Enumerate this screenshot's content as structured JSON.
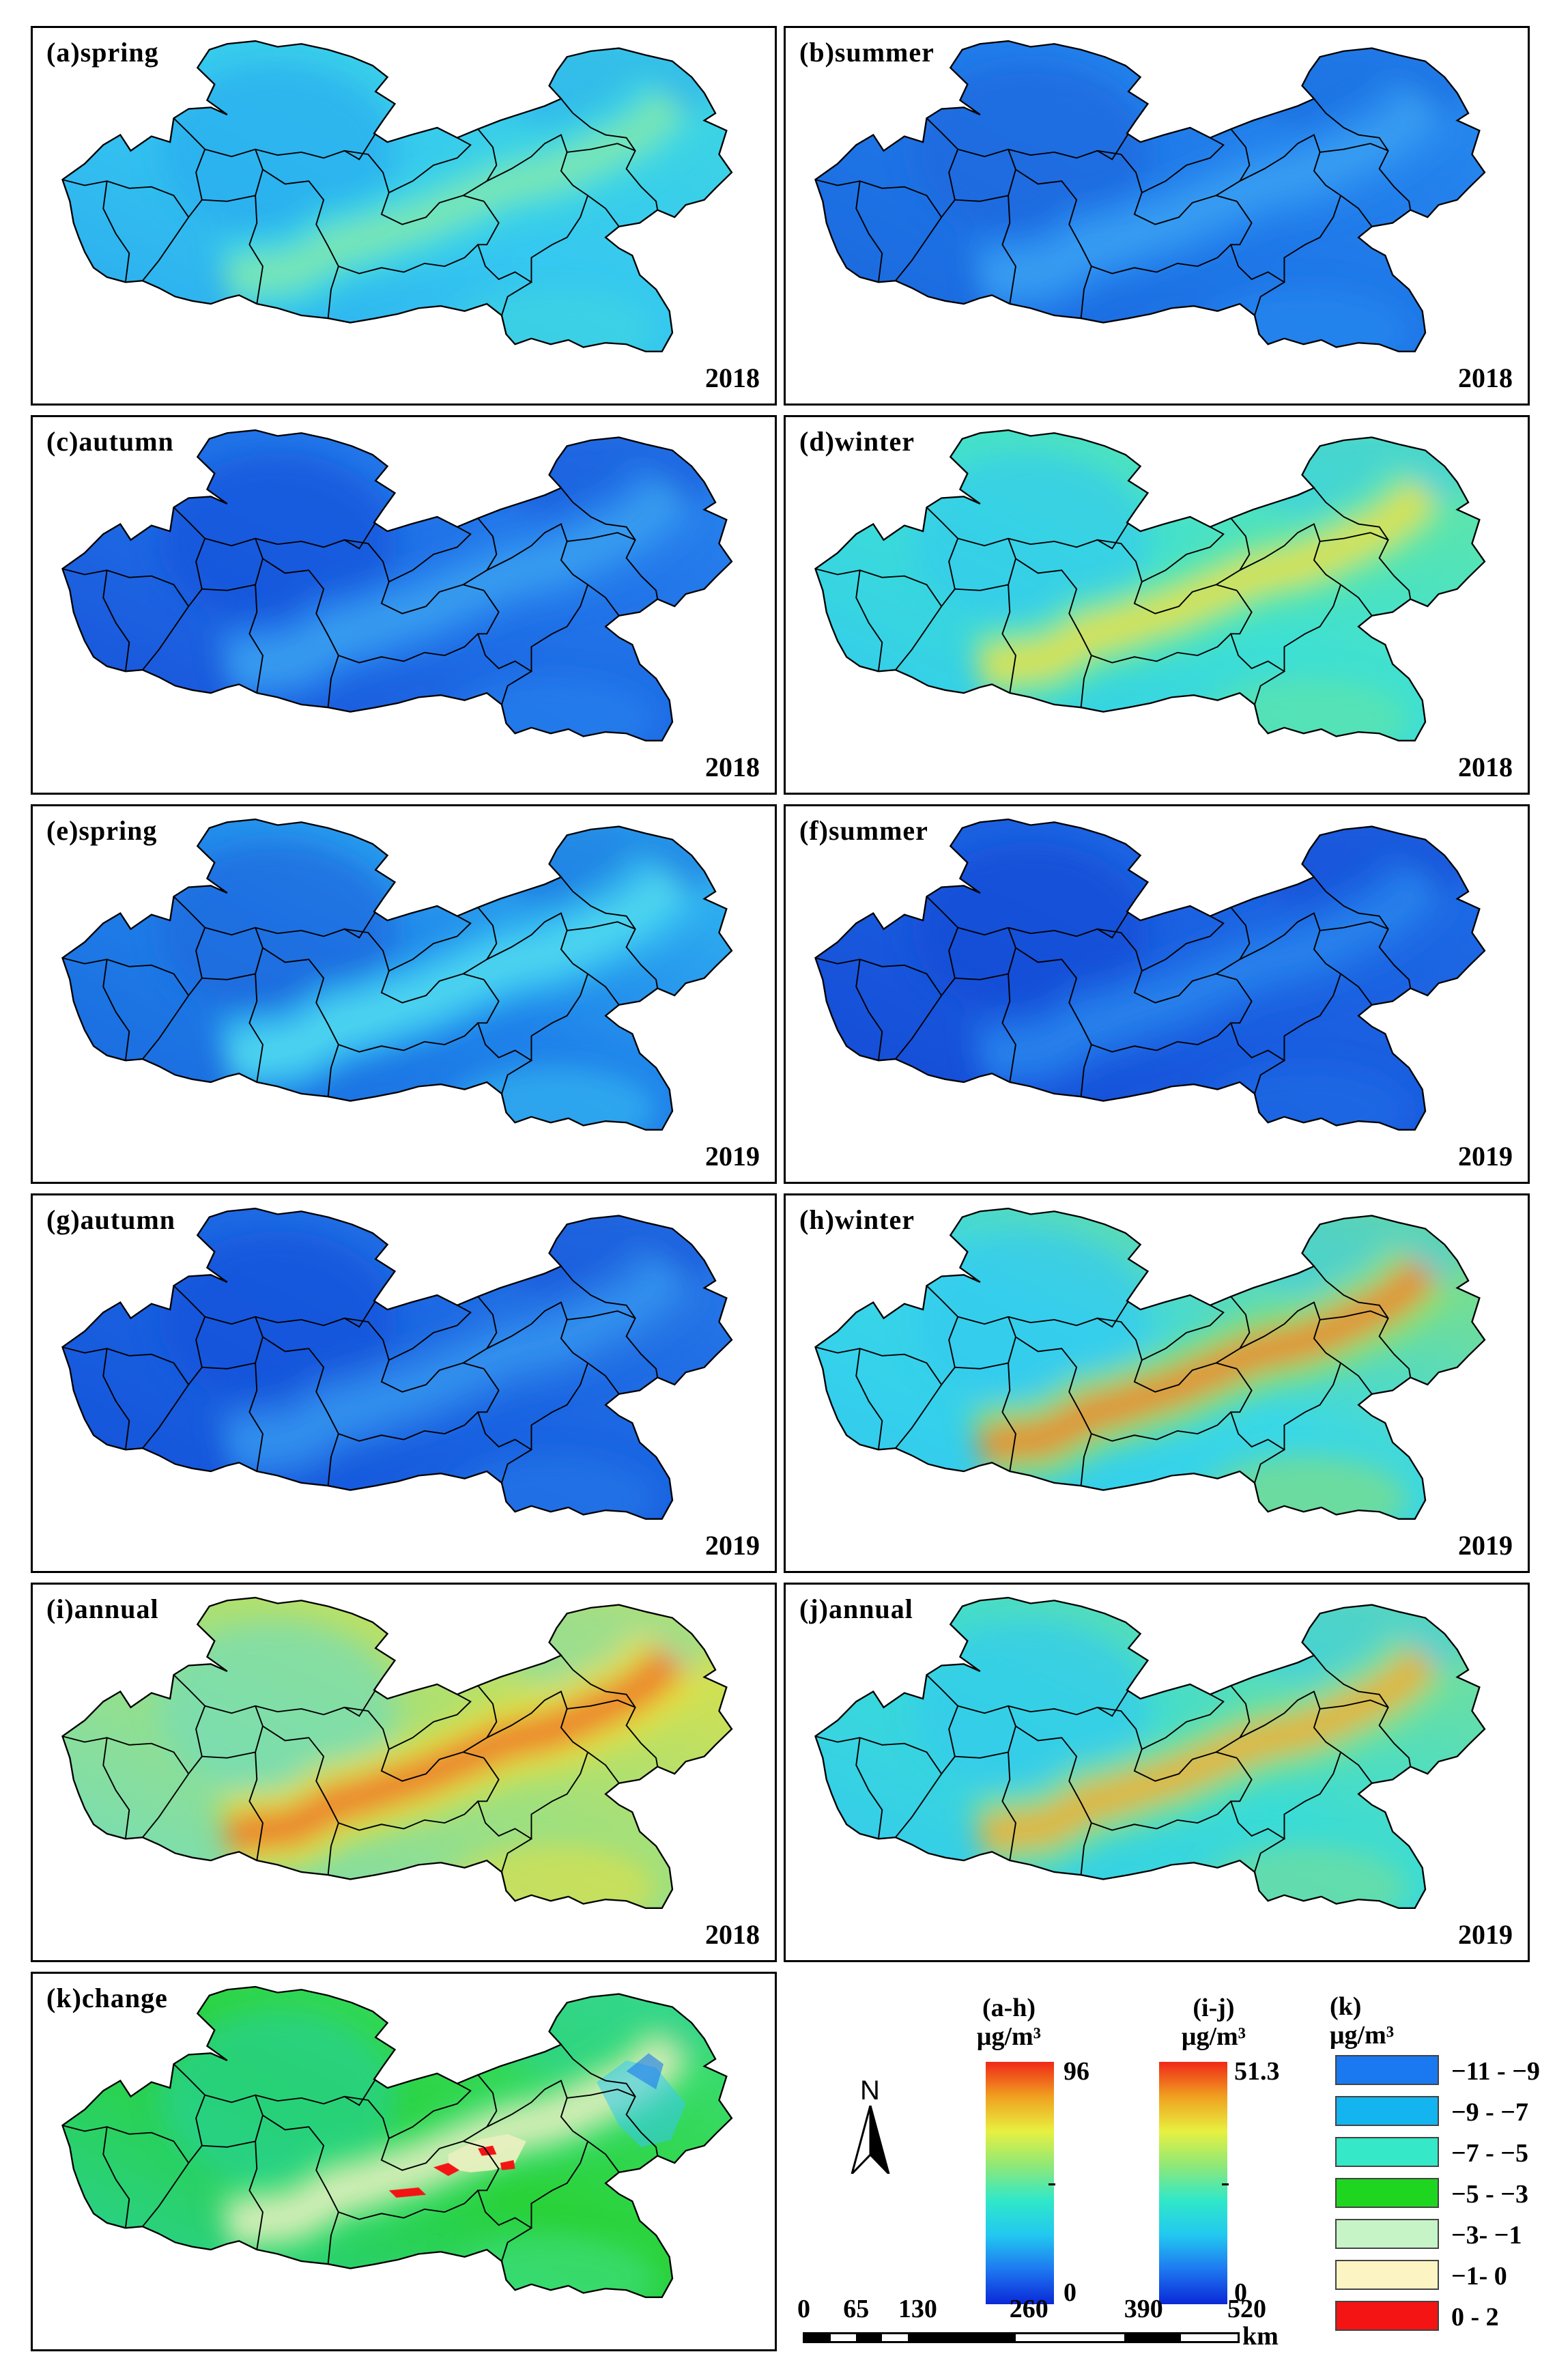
{
  "panels": [
    {
      "id": "a",
      "label": "(a)spring",
      "year": "2018",
      "palette": "cyan_a"
    },
    {
      "id": "b",
      "label": "(b)summer",
      "year": "2018",
      "palette": "blue_b"
    },
    {
      "id": "c",
      "label": "(c)autumn",
      "year": "2018",
      "palette": "blue_c"
    },
    {
      "id": "d",
      "label": "(d)winter",
      "year": "2018",
      "palette": "winter_d"
    },
    {
      "id": "e",
      "label": "(e)spring",
      "year": "2019",
      "palette": "spring_e"
    },
    {
      "id": "f",
      "label": "(f)summer",
      "year": "2019",
      "palette": "blue_f"
    },
    {
      "id": "g",
      "label": "(g)autumn",
      "year": "2019",
      "palette": "blue_g"
    },
    {
      "id": "h",
      "label": "(h)winter",
      "year": "2019",
      "palette": "winter_h"
    },
    {
      "id": "i",
      "label": "(i)annual",
      "year": "2018",
      "palette": "annual_i"
    },
    {
      "id": "j",
      "label": "(j)annual",
      "year": "2019",
      "palette": "annual_j"
    },
    {
      "id": "k",
      "label": "(k)change",
      "year": "",
      "palette": "change_k"
    }
  ],
  "palettes": {
    "cyan_a": {
      "base": "#36c8f0",
      "mid": "#40d8e0",
      "hot": "#7ee8b0",
      "edge": "#2aa8ee"
    },
    "blue_b": {
      "base": "#1f78e8",
      "mid": "#2a8cf0",
      "hot": "#3a9ef2",
      "edge": "#1a66dc"
    },
    "blue_c": {
      "base": "#1f6ee6",
      "mid": "#2a86ee",
      "hot": "#3aa0f0",
      "edge": "#1850d8"
    },
    "winter_d": {
      "base": "#3ee0d4",
      "mid": "#66e6a0",
      "hot": "#e6e24a",
      "edge": "#30c8f0"
    },
    "spring_e": {
      "base": "#1f82ea",
      "mid": "#36c0f2",
      "hot": "#50d8f0",
      "edge": "#1a66dc"
    },
    "blue_f": {
      "base": "#1a5ee0",
      "mid": "#1f6ee6",
      "hot": "#2a84ec",
      "edge": "#1448d4"
    },
    "blue_g": {
      "base": "#1a64e2",
      "mid": "#2a7ce8",
      "hot": "#3494ee",
      "edge": "#1450d8"
    },
    "winter_h": {
      "base": "#3ad8e6",
      "mid": "#8ee070",
      "hot": "#f0882a",
      "edge": "#30c8f0"
    },
    "annual_i": {
      "base": "#9ee080",
      "mid": "#e6e040",
      "hot": "#f0782a",
      "edge": "#6edcc0"
    },
    "annual_j": {
      "base": "#3adcd6",
      "mid": "#7ee090",
      "hot": "#f0b030",
      "edge": "#34c8f0"
    },
    "change_k": {
      "base": "#2ad238",
      "mid": "#40e080",
      "hot": "#e8f0c0",
      "edge": "#2ad0a0"
    }
  },
  "legend": {
    "ah": {
      "title_line1": "(a-h)",
      "title_line2": "μg/m³",
      "max": "96",
      "min": "0"
    },
    "ij": {
      "title_line1": "(i-j)",
      "title_line2": "μg/m³",
      "max": "51.3",
      "min": "0"
    },
    "k": {
      "title_line1": "(k)",
      "title_line2": "μg/m³",
      "classes": [
        {
          "label": "−11 - −9",
          "color": "#1a78f0"
        },
        {
          "label": "−9 - −7",
          "color": "#14b4f0"
        },
        {
          "label": "−7 - −5",
          "color": "#34e8c8"
        },
        {
          "label": "−5 - −3",
          "color": "#1ed620"
        },
        {
          "label": "−3- −1",
          "color": "#c6f4c6"
        },
        {
          "label": "−1- 0",
          "color": "#fcf4c2"
        },
        {
          "label": "0 - 2",
          "color": "#f41414"
        }
      ]
    }
  },
  "north_label": "N",
  "scale": {
    "ticks": [
      "0",
      "65",
      "130",
      "260",
      "390",
      "520"
    ],
    "unit": "km"
  },
  "colorbar_colors": [
    "#0a28d8",
    "#1e78f0",
    "#22c8f0",
    "#30e8c8",
    "#8ee878",
    "#e8f040",
    "#f0a020",
    "#f02818"
  ]
}
